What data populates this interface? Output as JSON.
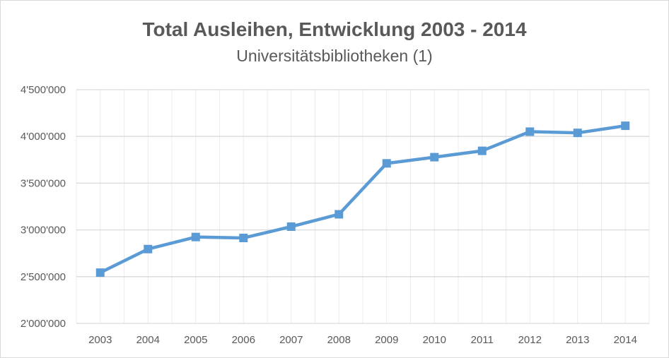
{
  "chart_data": {
    "type": "line",
    "title": "Total Ausleihen, Entwicklung 2003 - 2014",
    "subtitle": "Universitätsbibliotheken (1)",
    "xlabel": "",
    "ylabel": "",
    "categories": [
      "2003",
      "2004",
      "2005",
      "2006",
      "2007",
      "2008",
      "2009",
      "2010",
      "2011",
      "2012",
      "2013",
      "2014"
    ],
    "series": [
      {
        "name": "Total Ausleihen",
        "color": "#5b9bd5",
        "values": [
          2543000,
          2795000,
          2924000,
          2914000,
          3035000,
          3167000,
          3712000,
          3778000,
          3846000,
          4051000,
          4038000,
          4114000
        ]
      }
    ],
    "ylim": [
      2000000,
      4500000
    ],
    "yticks": [
      2000000,
      2500000,
      3000000,
      3500000,
      4000000,
      4500000
    ],
    "ytick_labels": [
      "2'000'000",
      "2'500'000",
      "3'000'000",
      "3'500'000",
      "4'000'000",
      "4'500'000"
    ],
    "grid": true,
    "legend": "none"
  }
}
